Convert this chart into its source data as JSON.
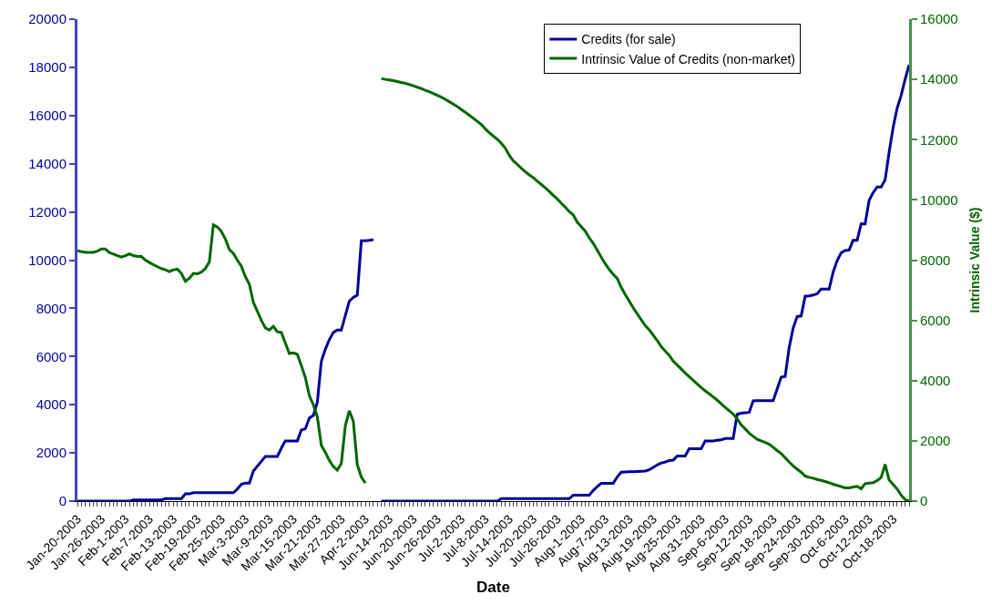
{
  "chart_data": {
    "type": "line",
    "xlabel": "Date",
    "y2label": "Intrinsic Value ($)",
    "categories": [
      "Jan-20-2003",
      null,
      null,
      null,
      null,
      null,
      "Jan-26-2003",
      null,
      null,
      null,
      null,
      null,
      "Feb-1-2003",
      null,
      null,
      null,
      null,
      null,
      "Feb-7-2003",
      null,
      null,
      null,
      null,
      null,
      "Feb-13-2003",
      null,
      null,
      null,
      null,
      null,
      "Feb-19-2003",
      null,
      null,
      null,
      null,
      null,
      "Feb-25-2003",
      null,
      null,
      null,
      null,
      null,
      "Mar-3-2003",
      null,
      null,
      null,
      null,
      null,
      "Mar-9-2003",
      null,
      null,
      null,
      null,
      null,
      "Mar-15-2003",
      null,
      null,
      null,
      null,
      null,
      "Mar-21-2003",
      null,
      null,
      null,
      null,
      null,
      "Mar-27-2003",
      null,
      null,
      null,
      null,
      null,
      "Apr-2-2003",
      null,
      null,
      null,
      null,
      null,
      "Jun-14-2003",
      null,
      null,
      null,
      null,
      null,
      "Jun-20-2003",
      null,
      null,
      null,
      null,
      null,
      "Jun-26-2003",
      null,
      null,
      null,
      null,
      null,
      "Jul-2-2003",
      null,
      null,
      null,
      null,
      null,
      "Jul-8-2003",
      null,
      null,
      null,
      null,
      null,
      "Jul-14-2003",
      null,
      null,
      null,
      null,
      null,
      "Jul-20-2003",
      null,
      null,
      null,
      null,
      null,
      "Jul-26-2003",
      null,
      null,
      null,
      null,
      null,
      "Aug-1-2003",
      null,
      null,
      null,
      null,
      null,
      "Aug-7-2003",
      null,
      null,
      null,
      null,
      null,
      "Aug-13-2003",
      null,
      null,
      null,
      null,
      null,
      "Aug-19-2003",
      null,
      null,
      null,
      null,
      null,
      "Aug-25-2003",
      null,
      null,
      null,
      null,
      null,
      "Aug-31-2003",
      null,
      null,
      null,
      null,
      null,
      "Sep-6-2003",
      null,
      null,
      null,
      null,
      null,
      "Sep-12-2003",
      null,
      null,
      null,
      null,
      null,
      "Sep-18-2003",
      null,
      null,
      null,
      null,
      null,
      "Sep-24-2003",
      null,
      null,
      null,
      null,
      null,
      "Sep-30-2003",
      null,
      null,
      null,
      null,
      null,
      "Oct-6-2003",
      null,
      null,
      null,
      null,
      null,
      "Oct-12-2003",
      null,
      null,
      null,
      null,
      null,
      "Oct-18-2003",
      null,
      null,
      null,
      null
    ],
    "series": [
      {
        "name": "Credits (for sale)",
        "color": "#000099",
        "values": [
          0,
          0,
          0,
          0,
          0,
          0,
          0,
          0,
          0,
          0,
          0,
          0,
          0,
          0,
          50,
          50,
          50,
          50,
          50,
          50,
          50,
          50,
          100,
          100,
          100,
          100,
          100,
          300,
          300,
          350,
          350,
          350,
          350,
          350,
          350,
          350,
          350,
          350,
          350,
          350,
          500,
          700,
          750,
          750,
          1250,
          1450,
          1650,
          1850,
          1850,
          1850,
          1850,
          2200,
          2500,
          2500,
          2500,
          2500,
          2950,
          3000,
          3450,
          3550,
          4100,
          5800,
          6300,
          6700,
          7000,
          7100,
          7100,
          7700,
          8300,
          8450,
          8550,
          10800,
          10800,
          10820,
          10850,
          null,
          0,
          0,
          0,
          0,
          0,
          0,
          0,
          0,
          0,
          0,
          0,
          0,
          0,
          0,
          0,
          0,
          0,
          0,
          0,
          0,
          0,
          0,
          0,
          0,
          0,
          0,
          0,
          0,
          0,
          0,
          100,
          100,
          100,
          100,
          100,
          100,
          100,
          100,
          100,
          100,
          100,
          100,
          100,
          100,
          100,
          100,
          100,
          100,
          250,
          250,
          250,
          250,
          250,
          440,
          600,
          740,
          740,
          740,
          740,
          1000,
          1200,
          1210,
          1220,
          1220,
          1230,
          1240,
          1250,
          1300,
          1400,
          1500,
          1580,
          1620,
          1680,
          1700,
          1870,
          1870,
          1870,
          2170,
          2170,
          2170,
          2170,
          2500,
          2500,
          2500,
          2520,
          2540,
          2600,
          2600,
          2600,
          3600,
          3650,
          3670,
          3680,
          4160,
          4170,
          4170,
          4170,
          4170,
          4170,
          4650,
          5140,
          5170,
          6370,
          7180,
          7660,
          7680,
          8500,
          8520,
          8550,
          8600,
          8800,
          8800,
          8800,
          9500,
          9980,
          10300,
          10400,
          10420,
          10820,
          10820,
          11500,
          11500,
          12480,
          12800,
          13030,
          13030,
          13330,
          14470,
          15500,
          16300,
          16830,
          17500,
          18100
        ]
      },
      {
        "name": "Intrinsic Value of Credits (non-market)",
        "color": "#006600",
        "axis": "y2",
        "values": [
          8310,
          8280,
          8260,
          8260,
          8260,
          8300,
          8370,
          8370,
          8250,
          8200,
          8150,
          8100,
          8150,
          8210,
          8150,
          8120,
          8120,
          8000,
          7920,
          7850,
          7780,
          7720,
          7680,
          7620,
          7680,
          7700,
          7560,
          7300,
          7400,
          7560,
          7550,
          7600,
          7720,
          7950,
          9170,
          9100,
          8950,
          8700,
          8350,
          8220,
          8000,
          7800,
          7450,
          7200,
          6600,
          6300,
          6000,
          5750,
          5680,
          5800,
          5620,
          5600,
          5250,
          4900,
          4920,
          4870,
          4500,
          4100,
          3500,
          3200,
          2800,
          1850,
          1620,
          1350,
          1150,
          1030,
          1250,
          2500,
          3000,
          2650,
          1200,
          800,
          600,
          null,
          null,
          null,
          14030,
          14000,
          13980,
          13960,
          13930,
          13900,
          13870,
          13830,
          13790,
          13740,
          13700,
          13640,
          13590,
          13530,
          13470,
          13410,
          13340,
          13260,
          13180,
          13100,
          13000,
          12910,
          12810,
          12710,
          12610,
          12500,
          12360,
          12230,
          12120,
          12010,
          11880,
          11720,
          11480,
          11300,
          11180,
          11050,
          10940,
          10830,
          10740,
          10620,
          10510,
          10400,
          10280,
          10150,
          10030,
          9890,
          9760,
          9610,
          9500,
          9260,
          9110,
          8960,
          8740,
          8560,
          8330,
          8100,
          7880,
          7690,
          7530,
          7390,
          7100,
          6860,
          6640,
          6420,
          6220,
          6020,
          5830,
          5690,
          5510,
          5330,
          5130,
          4980,
          4840,
          4650,
          4520,
          4390,
          4250,
          4130,
          4010,
          3890,
          3770,
          3660,
          3560,
          3460,
          3350,
          3230,
          3110,
          3000,
          2890,
          2730,
          2530,
          2400,
          2260,
          2150,
          2050,
          2000,
          1950,
          1890,
          1790,
          1680,
          1580,
          1440,
          1300,
          1170,
          1060,
          960,
          830,
          790,
          760,
          720,
          690,
          650,
          610,
          560,
          520,
          480,
          440,
          440,
          470,
          490,
          410,
          580,
          600,
          610,
          680,
          780,
          1220,
          700,
          550,
          400,
          200,
          50,
          0
        ]
      }
    ],
    "ylim": [
      0,
      20000
    ],
    "yticks": [
      0,
      2000,
      4000,
      6000,
      8000,
      10000,
      12000,
      14000,
      16000,
      18000,
      20000
    ],
    "y2lim": [
      0,
      16000
    ],
    "y2ticks": [
      0,
      2000,
      4000,
      6000,
      8000,
      10000,
      12000,
      14000,
      16000
    ],
    "legend": "top right",
    "marker": "none",
    "line_style": "solid"
  }
}
